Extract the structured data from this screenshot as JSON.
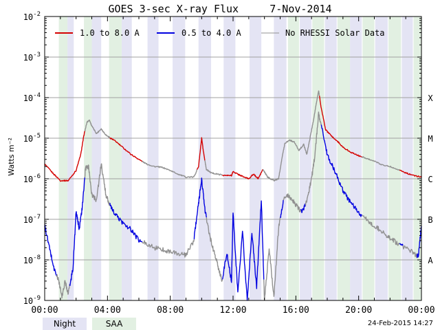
{
  "chart_data": {
    "type": "line",
    "title": "GOES 3-sec X-ray Flux     7-Nov-2014",
    "ylabel": "Watts m⁻²",
    "yscale": "log",
    "ylim": [
      1e-09,
      0.01
    ],
    "xlim": [
      0,
      24
    ],
    "x_tick_labels": [
      "00:00",
      "04:00",
      "08:00",
      "12:00",
      "16:00",
      "20:00",
      "00:00"
    ],
    "x_ticks": [
      0,
      4,
      8,
      12,
      16,
      20,
      24
    ],
    "y_tick_labels": [
      {
        "base": "10",
        "exp": "-9",
        "value": 1e-09
      },
      {
        "base": "10",
        "exp": "-8",
        "value": 1e-08
      },
      {
        "base": "10",
        "exp": "-7",
        "value": 1e-07
      },
      {
        "base": "10",
        "exp": "-6",
        "value": 1e-06
      },
      {
        "base": "10",
        "exp": "-5",
        "value": 1e-05
      },
      {
        "base": "10",
        "exp": "-4",
        "value": 0.0001
      },
      {
        "base": "10",
        "exp": "-3",
        "value": 0.001
      },
      {
        "base": "10",
        "exp": "-2",
        "value": 0.01
      }
    ],
    "class_labels": [
      {
        "label": "A",
        "value": 1e-08
      },
      {
        "label": "B",
        "value": 1e-07
      },
      {
        "label": "C",
        "value": 1e-06
      },
      {
        "label": "M",
        "value": 1e-05
      },
      {
        "label": "X",
        "value": 0.0001
      }
    ],
    "grid": true,
    "legend_position": "top",
    "night_intervals": [
      [
        1.45,
        1.85
      ],
      [
        3.0,
        3.6
      ],
      [
        4.9,
        5.55
      ],
      [
        6.55,
        7.25
      ],
      [
        8.15,
        8.95
      ],
      [
        9.8,
        10.6
      ],
      [
        11.4,
        12.15
      ],
      [
        13.05,
        13.8
      ],
      [
        14.6,
        15.4
      ],
      [
        16.25,
        17.0
      ],
      [
        17.85,
        18.6
      ],
      [
        19.45,
        20.2
      ],
      [
        21.05,
        21.85
      ],
      [
        22.75,
        23.45
      ]
    ],
    "saa_intervals": [
      [
        0.9,
        1.45
      ],
      [
        2.5,
        3.0
      ],
      [
        4.1,
        4.9
      ],
      [
        15.5,
        16.2
      ],
      [
        17.05,
        17.8
      ],
      [
        18.65,
        19.45
      ],
      [
        20.25,
        21.0
      ],
      [
        21.9,
        22.7
      ],
      [
        23.5,
        24.0
      ]
    ],
    "series": [
      {
        "name": "1.0 to 8.0 A",
        "color": "#d40000",
        "gray_ranges": [
          [
            2.55,
            4.15
          ],
          [
            6.2,
            9.7
          ],
          [
            10.2,
            11.3
          ],
          [
            13.9,
            17.5
          ],
          [
            20.2,
            22.6
          ]
        ],
        "x": [
          0,
          0.5,
          1.0,
          1.5,
          2.0,
          2.3,
          2.5,
          2.7,
          2.85,
          3.0,
          3.3,
          3.6,
          3.9,
          4.2,
          4.5,
          5.0,
          5.5,
          6.0,
          6.5,
          7.0,
          7.5,
          8.0,
          8.5,
          9.0,
          9.5,
          9.8,
          10.0,
          10.1,
          10.3,
          10.6,
          11.0,
          11.5,
          11.9,
          12.0,
          12.3,
          12.7,
          13.0,
          13.3,
          13.6,
          13.9,
          14.2,
          14.6,
          14.9,
          15.1,
          15.3,
          15.6,
          15.9,
          16.2,
          16.5,
          16.7,
          16.9,
          17.1,
          17.3,
          17.45,
          17.6,
          17.9,
          18.3,
          18.7,
          19.0,
          19.5,
          20.0,
          20.5,
          21.0,
          21.5,
          22.0,
          22.5,
          23.0,
          23.5,
          24.0
        ],
        "y": [
          2.3e-06,
          1.4e-06,
          9e-07,
          9e-07,
          1.6e-06,
          4e-06,
          1.2e-05,
          2.5e-05,
          2.8e-05,
          2e-05,
          1.3e-05,
          1.7e-05,
          1.2e-05,
          1e-05,
          8.5e-06,
          5.8e-06,
          4e-06,
          3e-06,
          2.3e-06,
          2e-06,
          1.9e-06,
          1.6e-06,
          1.3e-06,
          1.1e-06,
          1.1e-06,
          2e-06,
          1e-05,
          5e-06,
          1.7e-06,
          1.4e-06,
          1.3e-06,
          1.2e-06,
          1.2e-06,
          1.5e-06,
          1.3e-06,
          1.1e-06,
          1e-06,
          1.3e-06,
          1e-06,
          1.7e-06,
          1.1e-06,
          9e-07,
          1e-06,
          3e-06,
          7.5e-06,
          9e-06,
          8e-06,
          5e-06,
          7e-06,
          4e-06,
          1e-05,
          2.5e-05,
          7e-05,
          0.00015,
          6e-05,
          1.6e-05,
          1.1e-05,
          8e-06,
          6e-06,
          4.5e-06,
          3.7e-06,
          3.2e-06,
          2.7e-06,
          2.2e-06,
          2e-06,
          1.7e-06,
          1.4e-06,
          1.2e-06,
          1.1e-06
        ]
      },
      {
        "name": "0.5 to 4.0 A",
        "color": "#0000e0",
        "gray_ranges": [
          [
            0.75,
            1.6
          ],
          [
            2.55,
            4.15
          ],
          [
            6.2,
            9.5
          ],
          [
            10.3,
            11.3
          ],
          [
            13.95,
            15.0
          ],
          [
            15.2,
            16.3
          ],
          [
            16.6,
            17.6
          ],
          [
            20.2,
            22.6
          ],
          [
            22.8,
            23.7
          ]
        ],
        "x": [
          0,
          0.3,
          0.6,
          0.9,
          1.1,
          1.3,
          1.5,
          1.8,
          2.0,
          2.2,
          2.4,
          2.6,
          2.8,
          3.0,
          3.3,
          3.6,
          3.9,
          4.2,
          4.5,
          5.0,
          5.5,
          6.0,
          6.5,
          7.0,
          7.5,
          8.0,
          8.5,
          9.0,
          9.5,
          9.8,
          10.0,
          10.2,
          10.5,
          10.8,
          11.0,
          11.3,
          11.6,
          11.9,
          12.0,
          12.3,
          12.6,
          12.9,
          13.2,
          13.5,
          13.8,
          14.0,
          14.3,
          14.6,
          14.9,
          15.2,
          15.5,
          15.8,
          16.1,
          16.4,
          16.7,
          17.0,
          17.2,
          17.45,
          17.7,
          18.0,
          18.5,
          19.0,
          19.5,
          20.0,
          20.5,
          21.0,
          21.5,
          22.0,
          22.5,
          23.0,
          23.5,
          23.8,
          24.0
        ],
        "y": [
          7e-08,
          2e-08,
          6e-09,
          3e-09,
          1.2e-09,
          3e-09,
          1.5e-09,
          6e-09,
          1.5e-07,
          6e-08,
          2e-07,
          1.8e-06,
          2e-06,
          4e-07,
          3e-07,
          2.3e-06,
          4e-07,
          2e-07,
          1.3e-07,
          8e-08,
          5.5e-08,
          3e-08,
          2.5e-08,
          2e-08,
          1.8e-08,
          1.6e-08,
          1.4e-08,
          1.3e-08,
          3e-08,
          2.5e-07,
          1e-06,
          1.8e-07,
          4e-08,
          1.5e-08,
          8e-09,
          3e-09,
          1.5e-08,
          3e-09,
          1.5e-07,
          1.5e-09,
          5e-08,
          1e-09,
          5e-08,
          2e-09,
          3e-07,
          1e-09,
          2e-08,
          1.2e-09,
          6e-08,
          3e-07,
          4e-07,
          3e-07,
          2e-07,
          1.5e-07,
          3e-07,
          1e-06,
          3.5e-06,
          4e-05,
          1.5e-05,
          4e-06,
          1.5e-06,
          5e-07,
          2.5e-07,
          1.5e-07,
          1e-07,
          7e-08,
          5e-08,
          3.5e-08,
          2.5e-08,
          2e-08,
          1.5e-08,
          1.2e-08,
          7e-08
        ]
      },
      {
        "name": "No RHESSI Solar Data",
        "color": "#909090"
      }
    ]
  },
  "legend_boxes": {
    "night": {
      "label": "Night",
      "color": "#e4e4f4"
    },
    "saa": {
      "label": "SAA",
      "color": "#e2f0e2"
    }
  },
  "timestamp": "24-Feb-2015 14:27"
}
